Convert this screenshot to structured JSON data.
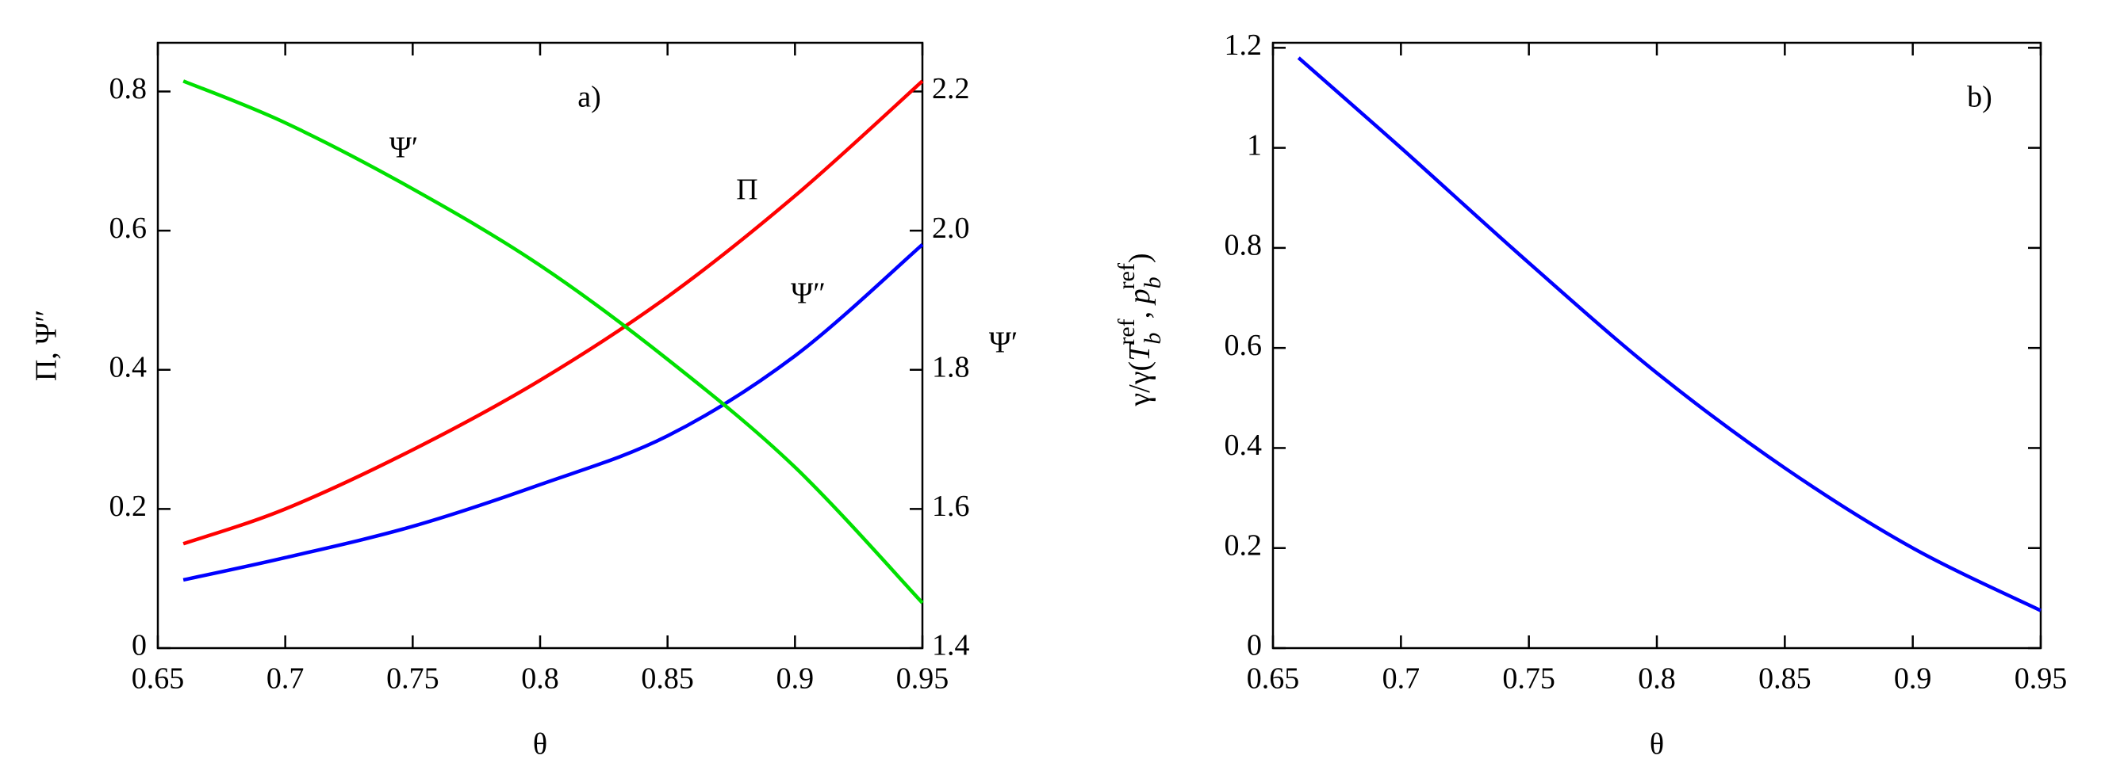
{
  "chart_data": [
    {
      "type": "line",
      "panel_label": "a)",
      "xlabel": "θ",
      "ylabel": "Π, Ψ″",
      "y2label": "Ψ′",
      "xlim": [
        0.65,
        0.95
      ],
      "xticks": [
        0.65,
        0.7,
        0.75,
        0.8,
        0.85,
        0.9,
        0.95
      ],
      "ylim": [
        0,
        0.87
      ],
      "yticks": [
        0,
        0.2,
        0.4,
        0.6,
        0.8
      ],
      "y2lim": [
        1.4,
        2.27
      ],
      "y2ticks": [
        1.4,
        1.6,
        1.8,
        {
          "value": 2,
          "label": "2.0"
        },
        2.2
      ],
      "series": [
        {
          "name": "Π",
          "color": "#ff0000",
          "x": [
            0.66,
            0.7,
            0.75,
            0.8,
            0.85,
            0.9,
            0.95
          ],
          "values": [
            0.15,
            0.2,
            0.285,
            0.385,
            0.505,
            0.65,
            0.815
          ]
        },
        {
          "name": "Ψ″",
          "color": "#0000ff",
          "x": [
            0.66,
            0.7,
            0.75,
            0.8,
            0.85,
            0.9,
            0.95
          ],
          "values": [
            0.098,
            0.13,
            0.175,
            0.235,
            0.305,
            0.42,
            0.58
          ]
        },
        {
          "name": "Ψ′",
          "color": "#00e000",
          "axis": "y2",
          "x": [
            0.66,
            0.7,
            0.75,
            0.8,
            0.85,
            0.9,
            0.95
          ],
          "values": [
            2.215,
            2.155,
            2.06,
            1.95,
            1.815,
            1.66,
            1.465
          ]
        }
      ]
    },
    {
      "type": "line",
      "panel_label": "b)",
      "xlabel": "θ",
      "ylabel_parts": [
        "γ/γ(",
        "T",
        "b",
        "ref",
        ", ",
        "p",
        "b",
        "ref",
        ")"
      ],
      "xlim": [
        0.65,
        0.95
      ],
      "xticks": [
        0.65,
        0.7,
        0.75,
        0.8,
        0.85,
        0.9,
        0.95
      ],
      "ylim": [
        0,
        1.21
      ],
      "yticks": [
        0,
        0.2,
        0.4,
        0.6,
        0.8,
        1,
        1.2
      ],
      "series": [
        {
          "color": "#0000ff",
          "x": [
            0.66,
            0.7,
            0.75,
            0.8,
            0.85,
            0.9,
            0.95
          ],
          "values": [
            1.18,
            1.0,
            0.77,
            0.55,
            0.36,
            0.2,
            0.075
          ]
        }
      ]
    }
  ]
}
